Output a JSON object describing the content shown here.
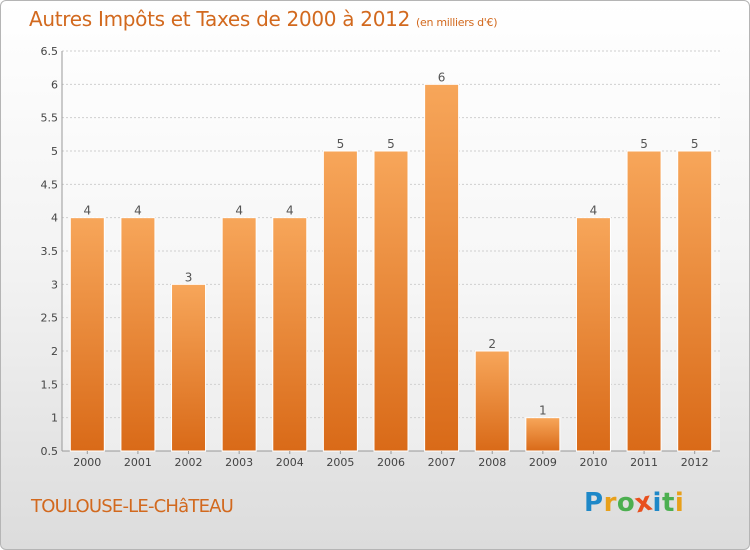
{
  "chart_data": {
    "type": "bar",
    "title": "Autres Impôts et Taxes de 2000 à 2012",
    "unit_label": "(en milliers d'€)",
    "categories": [
      "2000",
      "2001",
      "2002",
      "2003",
      "2004",
      "2005",
      "2006",
      "2007",
      "2008",
      "2009",
      "2010",
      "2011",
      "2012"
    ],
    "values": [
      4,
      4,
      3,
      4,
      4,
      5,
      5,
      6,
      2,
      1,
      4,
      5,
      5
    ],
    "data_labels": [
      "4",
      "4",
      "3",
      "4",
      "4",
      "5",
      "5",
      "6",
      "2",
      "1",
      "4",
      "5",
      "5"
    ],
    "yticks": [
      "0.5",
      "1",
      "1.5",
      "2",
      "2.5",
      "3",
      "3.5",
      "4",
      "4.5",
      "5",
      "5.5",
      "6",
      "6.5"
    ],
    "ylim": [
      0.5,
      6.5
    ],
    "grid": true,
    "bar_color": "#e8822a"
  },
  "place_name": "TOULOUSE-LE-CHâTEAU",
  "logo": {
    "letters": [
      "P",
      "r",
      "o",
      "x",
      "i",
      "t",
      "i"
    ],
    "colors": [
      "#1e88c8",
      "#e8a01a",
      "#4caf50",
      "#e8501e",
      "#1e88c8",
      "#4caf50",
      "#e8a01a"
    ]
  }
}
